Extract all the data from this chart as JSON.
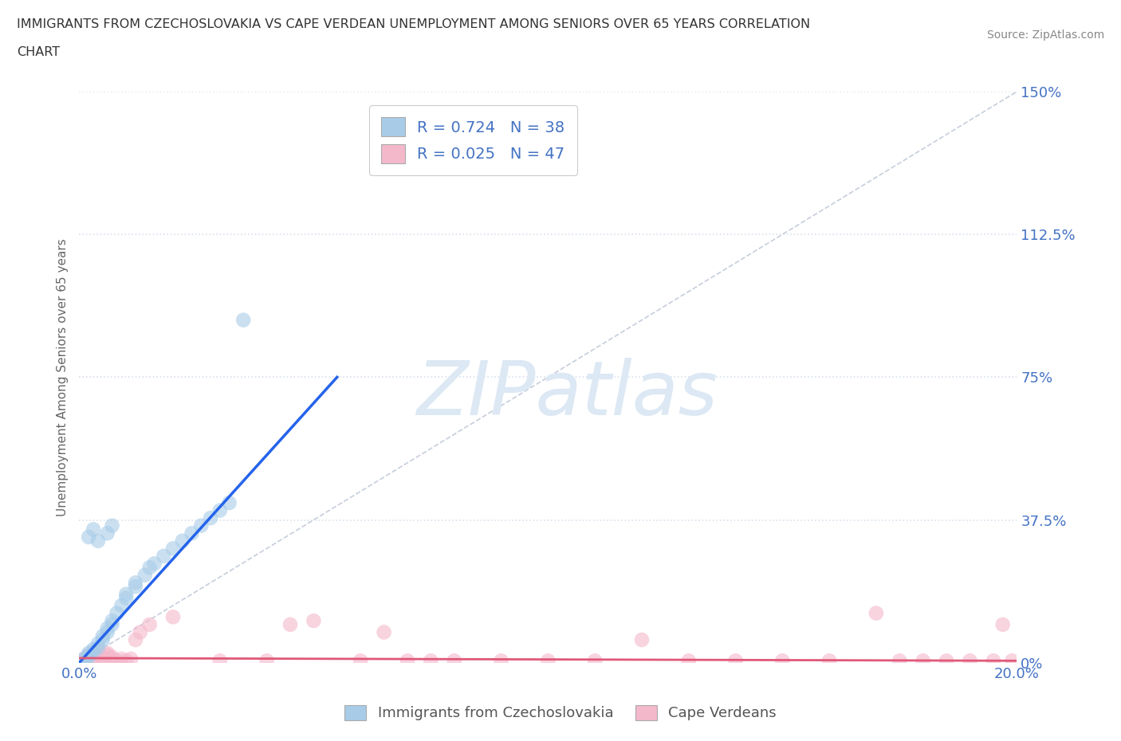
{
  "title_line1": "IMMIGRANTS FROM CZECHOSLOVAKIA VS CAPE VERDEAN UNEMPLOYMENT AMONG SENIORS OVER 65 YEARS CORRELATION",
  "title_line2": "CHART",
  "source_text": "Source: ZipAtlas.com",
  "ylabel": "Unemployment Among Seniors over 65 years",
  "x_min": 0.0,
  "x_max": 0.2,
  "y_min": 0.0,
  "y_max": 1.5,
  "blue_R": 0.724,
  "blue_N": 38,
  "pink_R": 0.025,
  "pink_N": 47,
  "blue_color": "#a8cce8",
  "pink_color": "#f4b8cb",
  "blue_trend_color": "#2563eb",
  "pink_trend_color": "#e05878",
  "ref_line_color": "#c0c8d8",
  "grid_color": "#d8e0ec",
  "watermark_color": "#dce8f4",
  "background_color": "#ffffff",
  "legend_label_blue": "Immigrants from Czechoslovakia",
  "legend_label_pink": "Cape Verdeans",
  "blue_scatter_x": [
    0.001,
    0.001,
    0.002,
    0.002,
    0.002,
    0.003,
    0.003,
    0.004,
    0.004,
    0.005,
    0.005,
    0.006,
    0.006,
    0.007,
    0.007,
    0.008,
    0.009,
    0.01,
    0.01,
    0.012,
    0.012,
    0.014,
    0.015,
    0.016,
    0.018,
    0.02,
    0.022,
    0.024,
    0.026,
    0.028,
    0.03,
    0.032,
    0.004,
    0.006,
    0.007,
    0.035,
    0.002,
    0.003
  ],
  "blue_scatter_y": [
    0.005,
    0.01,
    0.015,
    0.02,
    0.025,
    0.03,
    0.035,
    0.04,
    0.05,
    0.06,
    0.07,
    0.08,
    0.09,
    0.1,
    0.11,
    0.13,
    0.15,
    0.17,
    0.18,
    0.2,
    0.21,
    0.23,
    0.25,
    0.26,
    0.28,
    0.3,
    0.32,
    0.34,
    0.36,
    0.38,
    0.4,
    0.42,
    0.32,
    0.34,
    0.36,
    0.9,
    0.33,
    0.35
  ],
  "pink_scatter_x": [
    0.001,
    0.001,
    0.002,
    0.002,
    0.003,
    0.003,
    0.004,
    0.004,
    0.005,
    0.005,
    0.006,
    0.006,
    0.007,
    0.007,
    0.008,
    0.009,
    0.01,
    0.011,
    0.012,
    0.013,
    0.015,
    0.02,
    0.03,
    0.04,
    0.045,
    0.05,
    0.06,
    0.065,
    0.07,
    0.075,
    0.08,
    0.09,
    0.1,
    0.11,
    0.12,
    0.13,
    0.14,
    0.15,
    0.16,
    0.17,
    0.175,
    0.18,
    0.185,
    0.19,
    0.195,
    0.197,
    0.199
  ],
  "pink_scatter_y": [
    0.005,
    0.01,
    0.015,
    0.02,
    0.01,
    0.025,
    0.005,
    0.03,
    0.01,
    0.015,
    0.02,
    0.025,
    0.01,
    0.015,
    0.005,
    0.01,
    0.005,
    0.01,
    0.06,
    0.08,
    0.1,
    0.12,
    0.005,
    0.005,
    0.1,
    0.11,
    0.005,
    0.08,
    0.005,
    0.005,
    0.005,
    0.005,
    0.005,
    0.005,
    0.06,
    0.005,
    0.005,
    0.005,
    0.005,
    0.13,
    0.005,
    0.005,
    0.005,
    0.005,
    0.005,
    0.1,
    0.005
  ],
  "blue_trend_x": [
    0.0,
    0.055
  ],
  "blue_trend_y": [
    0.0,
    0.75
  ],
  "pink_trend_x": [
    0.0,
    0.2
  ],
  "pink_trend_y": [
    0.01,
    0.01
  ]
}
